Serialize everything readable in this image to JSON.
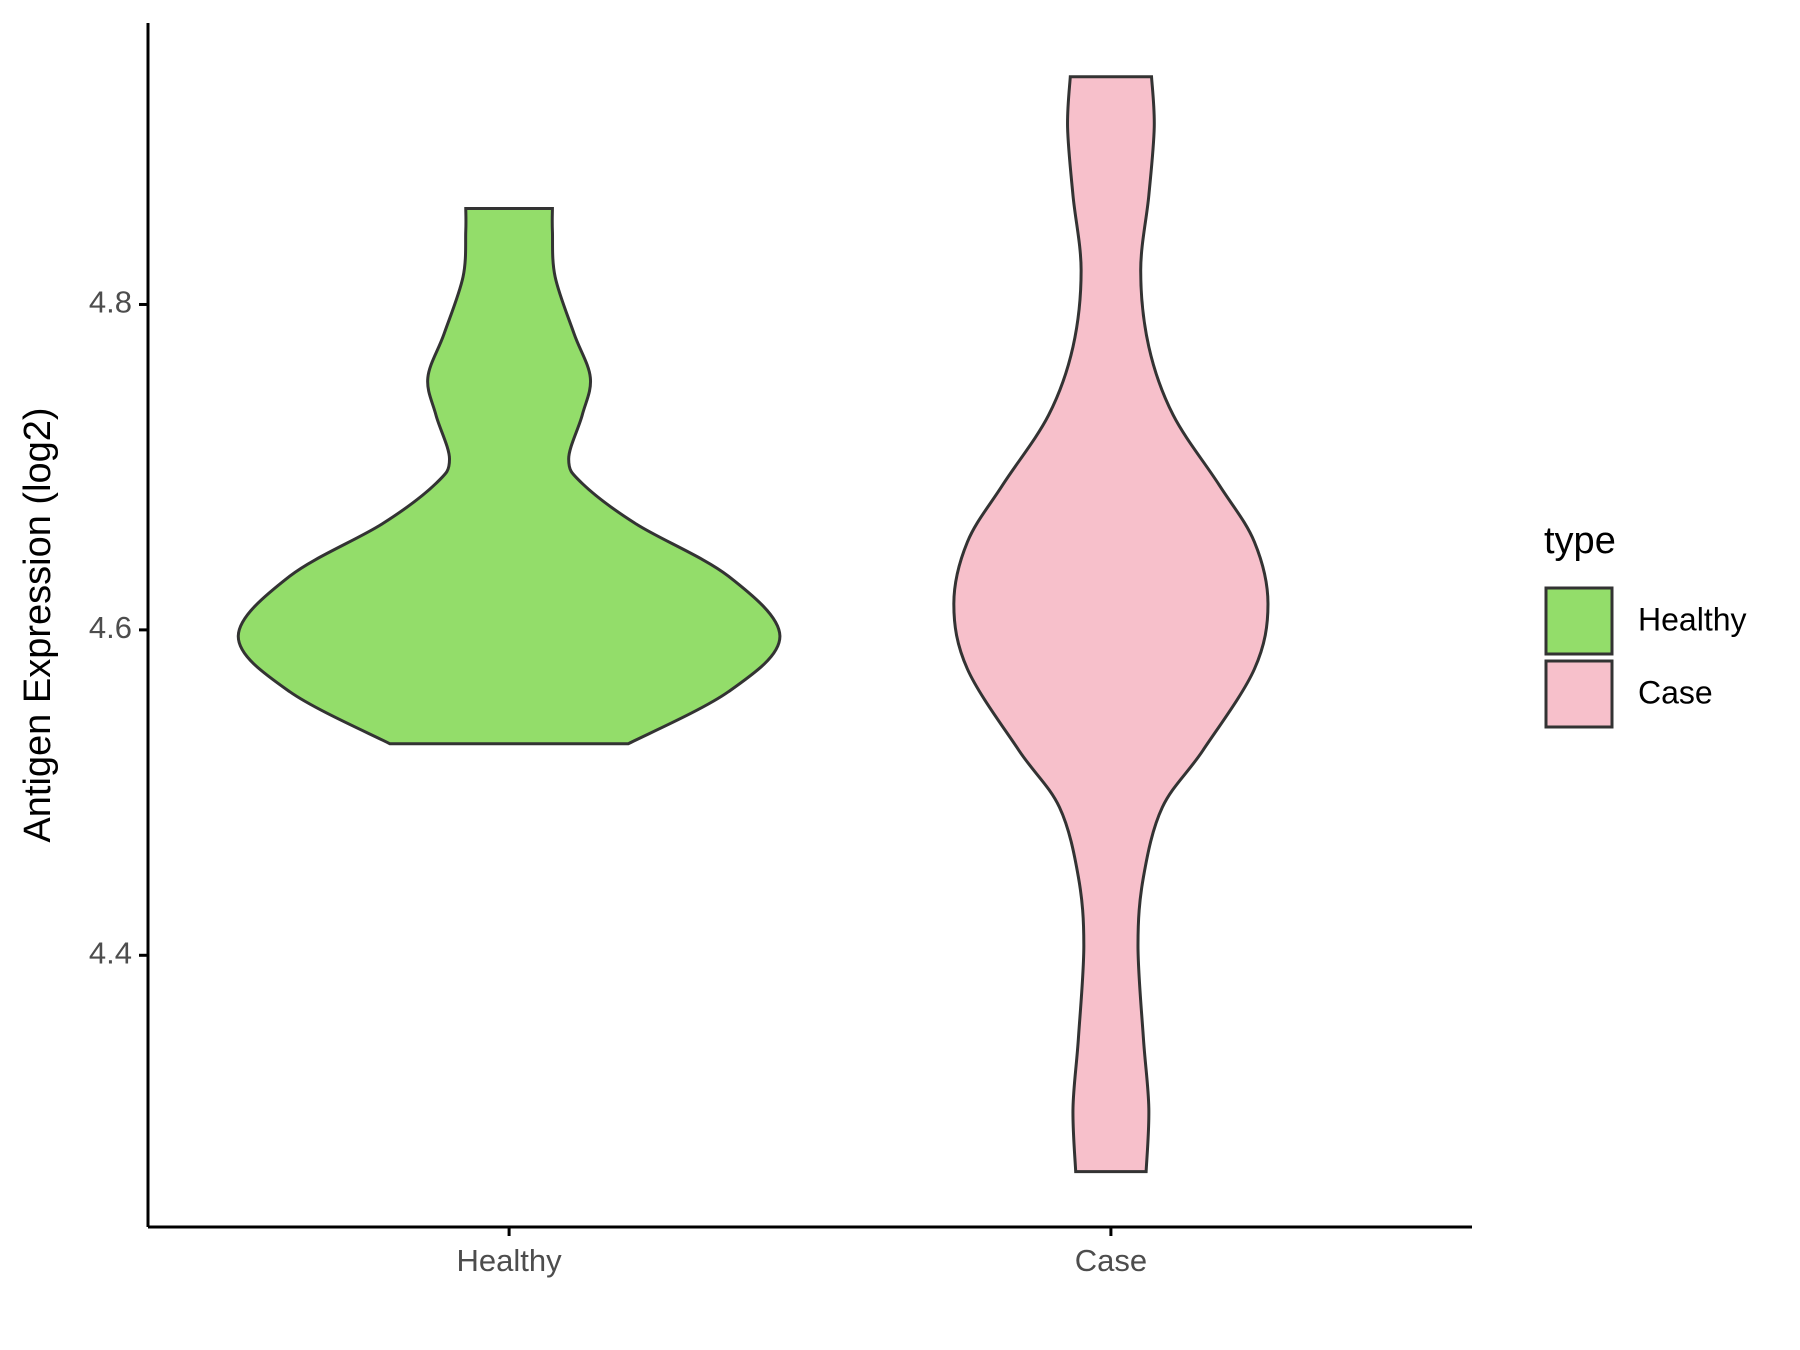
{
  "chart_data": {
    "type": "violin",
    "y_label": "Antigen Expression (log2)",
    "categories": [
      "Healthy",
      "Case"
    ],
    "legend_title": "type",
    "legend_position": "right",
    "ylim": [
      4.233,
      4.973
    ],
    "yticks": [
      4.4,
      4.6,
      4.8
    ],
    "series": [
      {
        "name": "Healthy",
        "color": "#93dd6a",
        "y": [
          4.53,
          4.562,
          4.596,
          4.633,
          4.665,
          4.69,
          4.705,
          4.732,
          4.755,
          4.782,
          4.817,
          4.845,
          4.859
        ],
        "density": [
          0.44,
          0.81,
          1.0,
          0.81,
          0.47,
          0.27,
          0.22,
          0.27,
          0.3,
          0.24,
          0.17,
          0.16,
          0.16
        ]
      },
      {
        "name": "Case",
        "color": "#f7c0cb",
        "y": [
          4.267,
          4.306,
          4.349,
          4.406,
          4.448,
          4.491,
          4.526,
          4.576,
          4.616,
          4.654,
          4.689,
          4.732,
          4.774,
          4.821,
          4.867,
          4.909,
          4.94
        ],
        "density": [
          0.13,
          0.14,
          0.12,
          0.1,
          0.12,
          0.19,
          0.34,
          0.53,
          0.58,
          0.53,
          0.4,
          0.23,
          0.14,
          0.11,
          0.14,
          0.16,
          0.15
        ]
      }
    ]
  }
}
